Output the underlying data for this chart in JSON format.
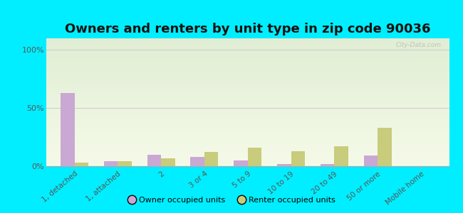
{
  "title": "Owners and renters by unit type in zip code 90036",
  "categories": [
    "1, detached",
    "1, attached",
    "2",
    "3 or 4",
    "5 to 9",
    "10 to 19",
    "20 to 49",
    "50 or more",
    "Mobile home"
  ],
  "owner_values": [
    63,
    4,
    10,
    8,
    5,
    2,
    2,
    9,
    0
  ],
  "renter_values": [
    3,
    4,
    7,
    12,
    16,
    13,
    17,
    33,
    0
  ],
  "owner_color": "#c9a8d4",
  "renter_color": "#c8cc7c",
  "outer_bg": "#00eeff",
  "title_fontsize": 13,
  "yticks": [
    0,
    50,
    100
  ],
  "ylim": [
    0,
    110
  ],
  "watermark": "City-Data.com",
  "legend_owner": "Owner occupied units",
  "legend_renter": "Renter occupied units",
  "bar_width": 0.32
}
